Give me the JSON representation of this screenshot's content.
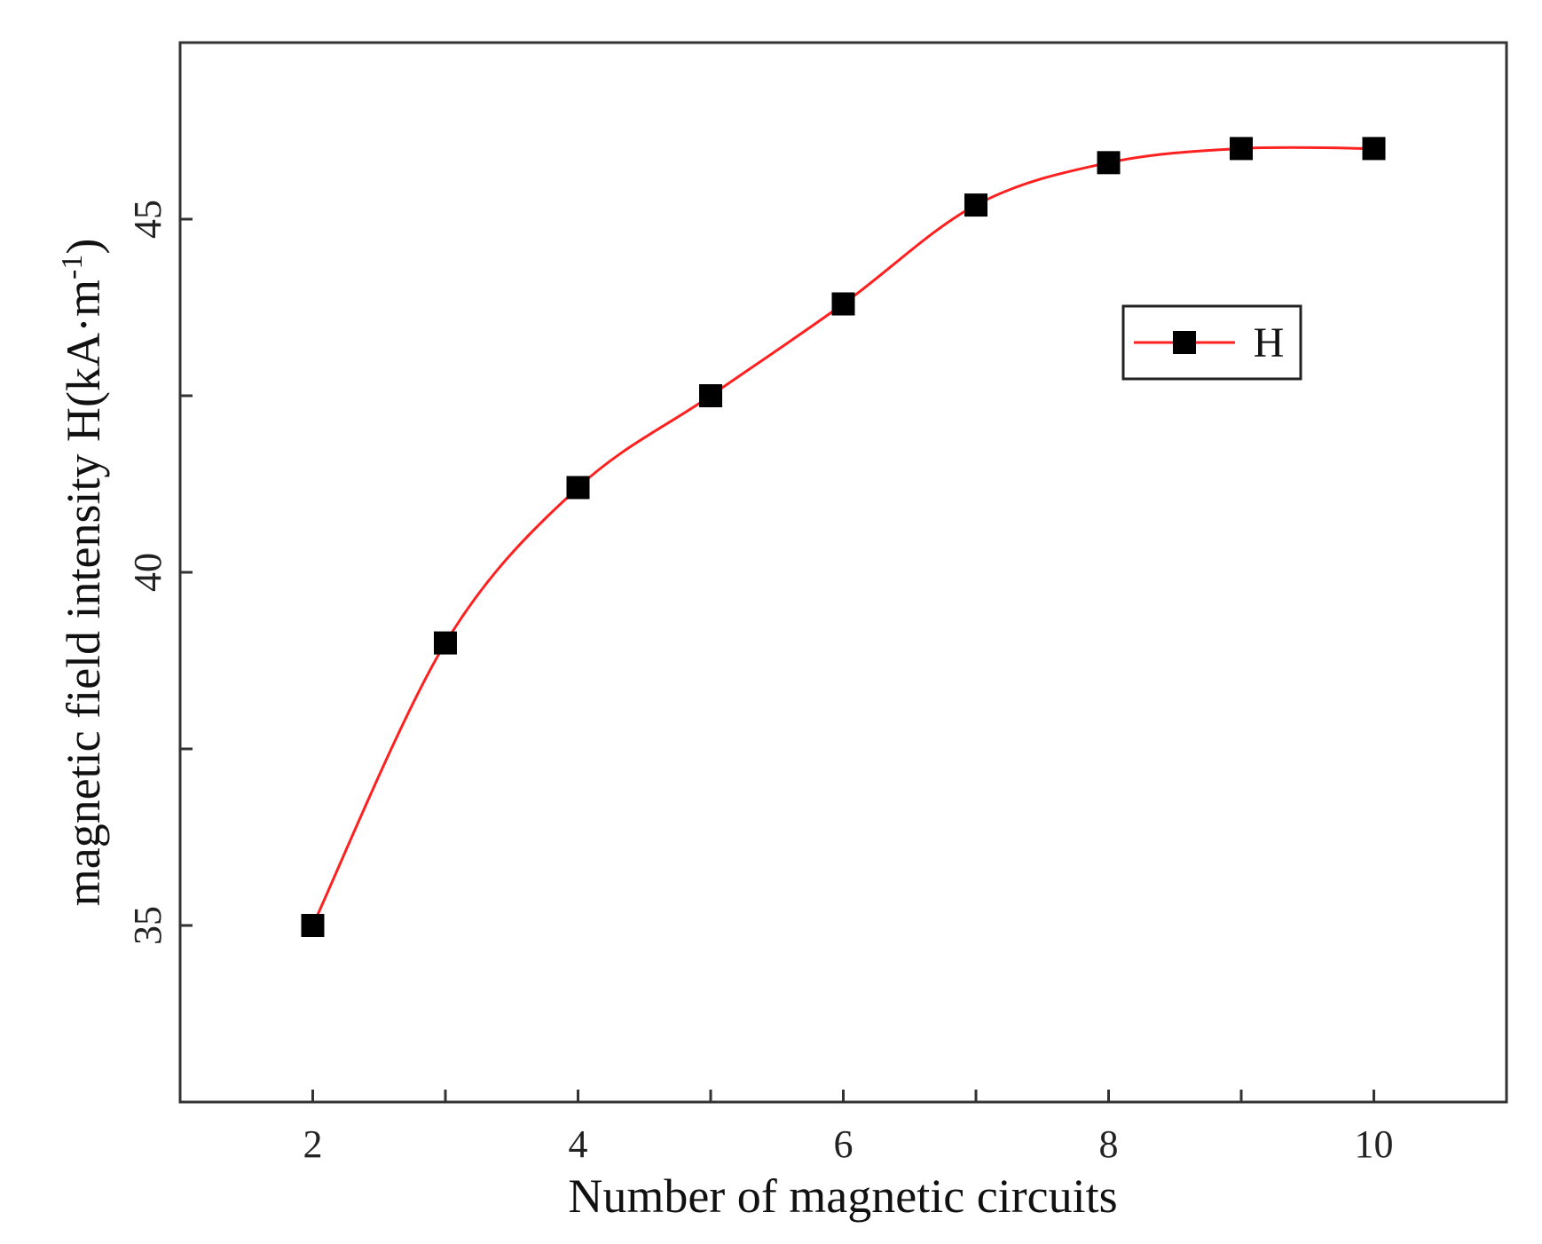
{
  "chart_data": {
    "type": "line",
    "x": [
      2,
      3,
      4,
      5,
      6,
      7,
      8,
      9,
      10
    ],
    "series": [
      {
        "name": "H",
        "values": [
          35.0,
          39.0,
          41.2,
          42.5,
          43.8,
          45.2,
          45.8,
          46.0,
          46.0
        ],
        "line_color": "#ff2020",
        "marker": "square",
        "marker_color": "#000000"
      }
    ],
    "xlabel": "Number of magnetic circuits",
    "ylabel_main": "magnetic field intensity H(kA·m",
    "ylabel_sup": "-1",
    "ylabel_close": ")",
    "xlim": [
      1,
      11
    ],
    "ylim": [
      32.5,
      47.5
    ],
    "xticks": [
      2,
      3,
      4,
      5,
      6,
      7,
      8,
      9,
      10
    ],
    "xtick_labels": [
      "2",
      "",
      "4",
      "",
      "6",
      "",
      "8",
      "",
      "10"
    ],
    "yticks": [
      35,
      37.5,
      40,
      42.5,
      45
    ],
    "ytick_labels": [
      "35",
      "",
      "40",
      "",
      "45"
    ],
    "legend": {
      "position": "top-right",
      "label": "H"
    },
    "grid": false
  }
}
